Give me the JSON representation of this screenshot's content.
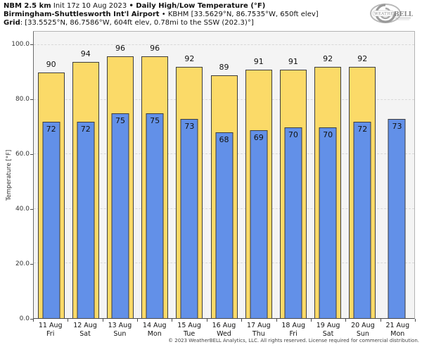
{
  "header": {
    "l1_model": "NBM 2.5 km",
    "l1_init": " Init 17z 10 Aug 2023 ",
    "l1_title": "• Daily High/Low Temperature (°F)",
    "l2_station": "Birmingham-Shuttlesworth Int'l Airport",
    "l2_meta": " • KBHM [33.5629°N, 86.7535°W, 650ft elev]",
    "l3_label": "Grid",
    "l3_value": ": [33.5525°N, 86.7586°W, 604ft elev, 0.78mi to the SSW (202.3)°]"
  },
  "logo": {
    "brand_left": "Weather",
    "brand_right": "BELL"
  },
  "chart_data": {
    "type": "bar",
    "title": "Daily High/Low Temperature (°F)",
    "categories": [
      "11 Aug",
      "12 Aug",
      "13 Aug",
      "14 Aug",
      "15 Aug",
      "16 Aug",
      "17 Aug",
      "18 Aug",
      "19 Aug",
      "20 Aug",
      "21 Aug"
    ],
    "weekdays": [
      "Fri",
      "Sat",
      "Sun",
      "Mon",
      "Tue",
      "Wed",
      "Thu",
      "Fri",
      "Sat",
      "Sun",
      "Mon"
    ],
    "series": [
      {
        "name": "High",
        "color": "#fbda68",
        "values": [
          90,
          94,
          96,
          96,
          92,
          89,
          91,
          91,
          92,
          92,
          null
        ]
      },
      {
        "name": "Low",
        "color": "#6290e8",
        "values": [
          72,
          72,
          75,
          75,
          73,
          68,
          69,
          70,
          70,
          72,
          73
        ]
      }
    ],
    "xlabel": "",
    "ylabel": "Temperature [°F]",
    "yticks": [
      {
        "value": 0,
        "label": "0.0"
      },
      {
        "value": 20,
        "label": "20.0"
      },
      {
        "value": 40,
        "label": "40.0"
      },
      {
        "value": 60,
        "label": "60.0"
      },
      {
        "value": 80,
        "label": "80.0"
      },
      {
        "value": 100,
        "label": "100.0"
      }
    ],
    "ylim": [
      0,
      105
    ],
    "grid": "horizontal-dashed",
    "legend": "none"
  },
  "colors": {
    "high": "#fbda68",
    "low": "#6290e8",
    "bar_border": "#3d3d3d",
    "grid": "#d8d8d8",
    "plot_bg": "#f4f4f4",
    "logo_gray": "#9a9a9a"
  },
  "footer": {
    "copyright": "© 2023 WeatherBELL Analytics, LLC. All rights reserved. License required for commercial distribution."
  }
}
